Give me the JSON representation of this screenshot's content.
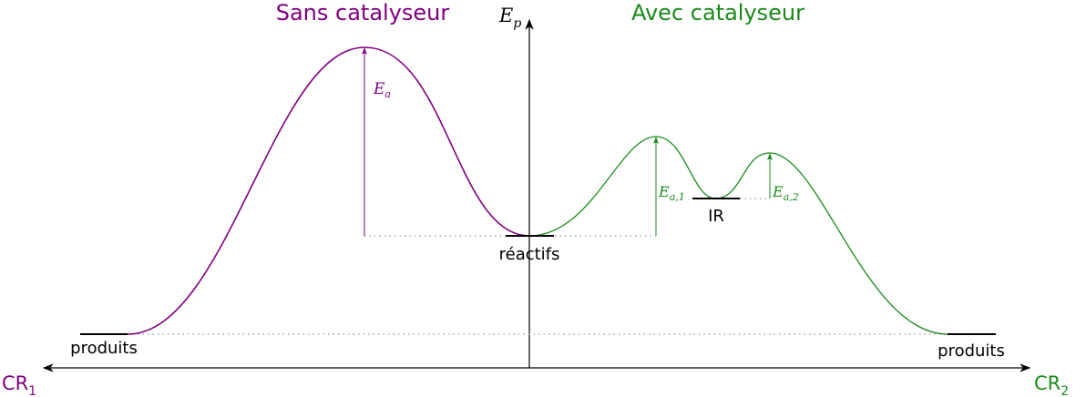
{
  "titles": {
    "left": "Sans catalyseur",
    "right": "Avec catalyseur"
  },
  "axes": {
    "vertical": {
      "symbol": "E",
      "subscript": "p"
    },
    "left": {
      "symbol": "CR",
      "subscript": "1"
    },
    "right": {
      "symbol": "CR",
      "subscript": "2"
    }
  },
  "activation": [
    {
      "symbol": "E",
      "subscript": "a"
    },
    {
      "symbol": "E",
      "subscript": "a,1"
    },
    {
      "symbol": "E",
      "subscript": "a,2"
    }
  ],
  "levels": {
    "reactants": "réactifs",
    "intermediate": "IR",
    "products_left": "produits",
    "products_right": "produits"
  }
}
